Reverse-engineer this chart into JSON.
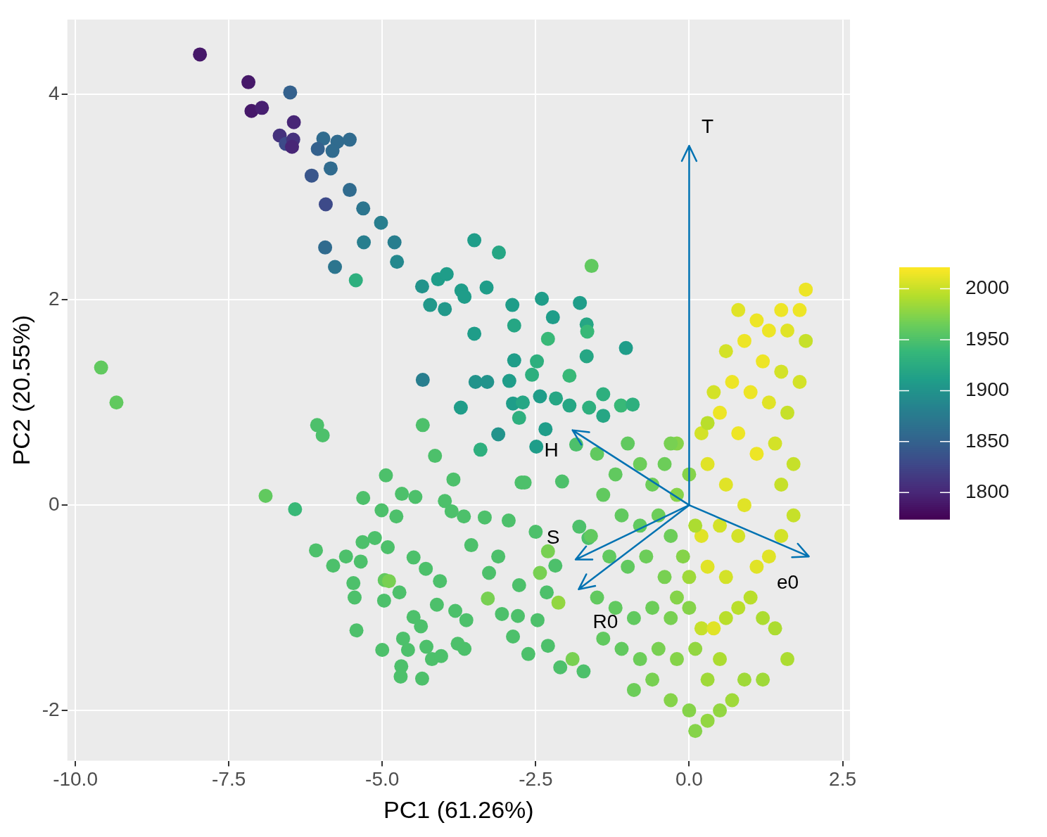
{
  "chart_data": {
    "type": "scatter",
    "xlabel": "PC1 (61.26%)",
    "ylabel": "PC2 (20.55%)",
    "marker": "circle",
    "x": [
      -7.97,
      -7.18,
      -7.13,
      -6.96,
      -6.5,
      -6.44,
      -6.67,
      -6.57,
      -6.45,
      -6.47,
      -5.96,
      -6.05,
      -5.73,
      -5.53,
      -5.81,
      -5.84,
      -6.15,
      -5.53,
      -5.92,
      -5.31,
      -5.02,
      -5.93,
      -5.3,
      -4.8,
      -5.77,
      -4.76,
      -5.43,
      -4.35,
      -4.09,
      -3.95,
      -4.22,
      -3.98,
      -3.71,
      -3.66,
      -3.3,
      -3.5,
      -3.1,
      -2.88,
      -2.4,
      -2.22,
      -2.85,
      -1.78,
      -1.67,
      -1.59,
      -1.66,
      -3.5,
      -2.3,
      -2.85,
      -2.48,
      -1.67,
      -1.03,
      -4.34,
      -3.48,
      -3.29,
      -2.93,
      -2.56,
      -1.95,
      -2.43,
      -2.87,
      -2.71,
      -2.17,
      -1.95,
      -3.72,
      -2.77,
      -2.34,
      -3.11,
      -2.49,
      -3.4,
      -1.63,
      -1.4,
      -1.4,
      -1.11,
      -0.92,
      -4.34,
      -4.14,
      -3.84,
      -2.73,
      -6.06,
      -5.97,
      -9.58,
      -9.33,
      -6.9,
      -6.42,
      -4.94,
      -5.31,
      -4.68,
      -4.46,
      -3.98,
      -3.87,
      -3.67,
      -3.33,
      -2.94,
      -2.5,
      -5.01,
      -4.77,
      -5.32,
      -5.12,
      -4.91,
      -6.08,
      -5.8,
      -5.59,
      -5.47,
      -5.45,
      -5.35,
      -4.49,
      -4.29,
      -4.06,
      -4.96,
      -4.89,
      -4.72,
      -4.97,
      -4.11,
      -3.81,
      -3.63,
      -3.55,
      -3.11,
      -3.26,
      -2.77,
      -3.28,
      -3.05,
      -2.79,
      -2.47,
      -4.49,
      -4.37,
      -5.42,
      -4.66,
      -4.58,
      -4.28,
      -5.0,
      -4.69,
      -4.7,
      -4.35,
      -4.19,
      -4.04,
      -3.77,
      -3.66,
      -2.87,
      -2.62,
      -2.3,
      -2.1,
      -1.9,
      -1.72,
      -2.43,
      -2.32,
      -2.13,
      -2.18,
      -2.3,
      -2.68,
      -2.07,
      -1.84,
      -1.79,
      -1.64,
      -1.5,
      -1.2,
      -1.0,
      -0.8,
      -0.6,
      -0.4,
      -0.2,
      -1.4,
      -1.1,
      -0.8,
      -0.5,
      -0.3,
      -1.6,
      -1.3,
      -1.0,
      -0.7,
      -0.4,
      -0.1,
      -1.5,
      -1.2,
      -0.9,
      -0.6,
      -0.3,
      0.0,
      -1.4,
      -1.1,
      -0.8,
      -0.5,
      -0.2,
      0.1,
      -0.9,
      -0.6,
      -0.3,
      0.0,
      0.1,
      0.3,
      0.5,
      0.7,
      0.9,
      0.3,
      0.5,
      0.2,
      0.4,
      0.6,
      0.8,
      1.0,
      1.2,
      1.4,
      1.6,
      1.2,
      1.1,
      1.3,
      0.6,
      0.3,
      0.2,
      0.5,
      0.8,
      1.5,
      1.7,
      1.5,
      0.9,
      0.6,
      0.3,
      0.2,
      0.5,
      0.8,
      1.1,
      1.4,
      1.7,
      1.6,
      1.3,
      1.0,
      0.7,
      0.4,
      0.6,
      0.9,
      1.2,
      1.5,
      1.8,
      1.9,
      1.6,
      1.3,
      1.1,
      1.5,
      1.9,
      1.8,
      0.8,
      0.3,
      -0.3,
      0.0,
      -0.2,
      0.1,
      -0.2,
      0.0
    ],
    "values": [
      4.39,
      4.12,
      3.84,
      3.87,
      4.02,
      3.73,
      3.6,
      3.52,
      3.56,
      3.49,
      3.57,
      3.47,
      3.54,
      3.56,
      3.45,
      3.28,
      3.21,
      3.07,
      2.93,
      2.89,
      2.75,
      2.51,
      2.56,
      2.56,
      2.32,
      2.37,
      2.19,
      2.13,
      2.2,
      2.25,
      1.95,
      1.91,
      2.09,
      2.03,
      2.12,
      2.58,
      2.46,
      1.95,
      2.01,
      1.83,
      1.75,
      1.97,
      1.76,
      2.33,
      1.69,
      1.67,
      1.62,
      1.41,
      1.4,
      1.45,
      1.53,
      1.22,
      1.2,
      1.2,
      1.21,
      1.27,
      1.26,
      1.06,
      0.99,
      1.0,
      1.04,
      0.97,
      0.95,
      0.85,
      0.74,
      0.69,
      0.57,
      0.54,
      0.95,
      1.08,
      0.87,
      0.97,
      0.98,
      0.78,
      0.48,
      0.25,
      0.22,
      0.78,
      0.68,
      1.34,
      1.0,
      0.09,
      -0.04,
      0.29,
      0.07,
      0.11,
      0.08,
      0.04,
      -0.06,
      -0.11,
      -0.12,
      -0.15,
      -0.26,
      -0.05,
      -0.11,
      -0.36,
      -0.32,
      -0.41,
      -0.44,
      -0.59,
      -0.5,
      -0.76,
      -0.9,
      -0.55,
      -0.51,
      -0.62,
      -0.74,
      -0.73,
      -0.74,
      -0.85,
      -0.93,
      -0.97,
      -1.03,
      -1.12,
      -0.39,
      -0.5,
      -0.66,
      -0.78,
      -0.91,
      -1.06,
      -1.08,
      -1.12,
      -1.09,
      -1.18,
      -1.22,
      -1.3,
      -1.41,
      -1.38,
      -1.41,
      -1.57,
      -1.67,
      -1.69,
      -1.5,
      -1.47,
      -1.35,
      -1.4,
      -1.28,
      -1.45,
      -1.37,
      -1.58,
      -1.5,
      -1.62,
      -0.66,
      -0.85,
      -0.95,
      -0.59,
      -0.45,
      0.22,
      0.23,
      0.59,
      -0.21,
      -0.32,
      0.5,
      0.3,
      0.6,
      0.4,
      0.2,
      0.4,
      0.6,
      0.1,
      -0.1,
      -0.2,
      -0.1,
      -0.3,
      -0.3,
      -0.5,
      -0.6,
      -0.5,
      -0.7,
      -0.5,
      -0.9,
      -1.0,
      -1.1,
      -1.0,
      -1.1,
      -1.0,
      -1.3,
      -1.4,
      -1.5,
      -1.4,
      -1.5,
      -1.4,
      -1.8,
      -1.7,
      -1.9,
      -2.0,
      -2.2,
      -2.1,
      -2.0,
      -1.9,
      -1.7,
      -1.7,
      -1.5,
      -1.2,
      -1.2,
      -1.1,
      -1.0,
      -0.9,
      -1.1,
      -1.2,
      -1.5,
      -1.7,
      -0.6,
      -0.5,
      -0.7,
      -0.6,
      -0.3,
      -0.2,
      -0.3,
      -0.3,
      -0.1,
      0.2,
      0.0,
      0.2,
      0.4,
      0.7,
      0.9,
      0.7,
      0.5,
      0.6,
      0.4,
      0.9,
      1.0,
      1.1,
      1.2,
      1.1,
      1.5,
      1.6,
      1.4,
      1.3,
      1.2,
      1.6,
      1.7,
      1.7,
      1.8,
      1.9,
      2.1,
      1.9,
      1.9,
      0.8,
      0.6,
      0.3,
      0.1,
      -0.2,
      -0.9,
      -0.7
    ],
    "cvalues": [
      1790,
      1790,
      1790,
      1795,
      1850,
      1800,
      1810,
      1830,
      1810,
      1800,
      1860,
      1850,
      1860,
      1860,
      1860,
      1860,
      1840,
      1860,
      1830,
      1870,
      1880,
      1860,
      1880,
      1880,
      1870,
      1890,
      1930,
      1900,
      1910,
      1910,
      1905,
      1905,
      1910,
      1910,
      1910,
      1910,
      1920,
      1910,
      1910,
      1910,
      1920,
      1910,
      1920,
      1960,
      1940,
      1910,
      1940,
      1910,
      1930,
      1920,
      1910,
      1880,
      1900,
      1900,
      1910,
      1930,
      1940,
      1910,
      1910,
      1920,
      1920,
      1920,
      1910,
      1930,
      1910,
      1900,
      1910,
      1930,
      1930,
      1930,
      1920,
      1940,
      1930,
      1950,
      1950,
      1950,
      1950,
      1950,
      1950,
      1960,
      1960,
      1960,
      1940,
      1950,
      1950,
      1950,
      1950,
      1950,
      1950,
      1950,
      1950,
      1950,
      1950,
      1950,
      1950,
      1950,
      1950,
      1950,
      1950,
      1950,
      1950,
      1950,
      1950,
      1950,
      1950,
      1950,
      1950,
      1960,
      1970,
      1950,
      1950,
      1950,
      1950,
      1950,
      1950,
      1950,
      1950,
      1950,
      1970,
      1950,
      1950,
      1950,
      1950,
      1950,
      1950,
      1950,
      1950,
      1950,
      1950,
      1950,
      1950,
      1950,
      1950,
      1950,
      1950,
      1950,
      1950,
      1950,
      1950,
      1950,
      1970,
      1950,
      1970,
      1950,
      1980,
      1950,
      1970,
      1950,
      1950,
      1950,
      1950,
      1950,
      1960,
      1960,
      1960,
      1965,
      1965,
      1965,
      1975,
      1960,
      1960,
      1960,
      1965,
      1965,
      1960,
      1960,
      1960,
      1965,
      1970,
      1975,
      1960,
      1960,
      1960,
      1965,
      1970,
      1975,
      1960,
      1960,
      1965,
      1970,
      1975,
      1980,
      1965,
      1970,
      1975,
      1975,
      1975,
      1980,
      1980,
      1985,
      1985,
      1985,
      1990,
      2000,
      2010,
      1995,
      1995,
      1995,
      1990,
      1990,
      1990,
      1985,
      2010,
      2010,
      2005,
      2010,
      2010,
      2005,
      2005,
      2005,
      2000,
      2000,
      2010,
      2010,
      2010,
      2005,
      2015,
      2015,
      2015,
      2005,
      2000,
      2000,
      2010,
      2015,
      2015,
      2005,
      2005,
      2015,
      2015,
      2005,
      2005,
      2000,
      2010,
      2015,
      2015,
      2015,
      2015,
      2015,
      2010,
      1995,
      1970,
      1975,
      1975,
      1990,
      1975,
      1985
    ],
    "annotations": [
      "T",
      "H",
      "S",
      "R0",
      "e0"
    ],
    "clim": [
      1774,
      2021
    ],
    "cticks": [
      1800,
      1850,
      1900,
      1950,
      2000
    ],
    "xlim": [
      -10.13,
      2.62
    ],
    "xticks": [
      {
        "value": -10,
        "label": "-10.0"
      },
      {
        "value": -7.5,
        "label": "-7.5"
      },
      {
        "value": -5,
        "label": "-5.0"
      },
      {
        "value": -2.5,
        "label": "-2.5"
      },
      {
        "value": 0,
        "label": "0.0"
      },
      {
        "value": 2.5,
        "label": "2.5"
      }
    ],
    "ylim": [
      -2.49,
      4.73
    ],
    "yticks": [
      -2,
      0,
      2,
      4
    ],
    "grid": true,
    "legend": false
  }
}
